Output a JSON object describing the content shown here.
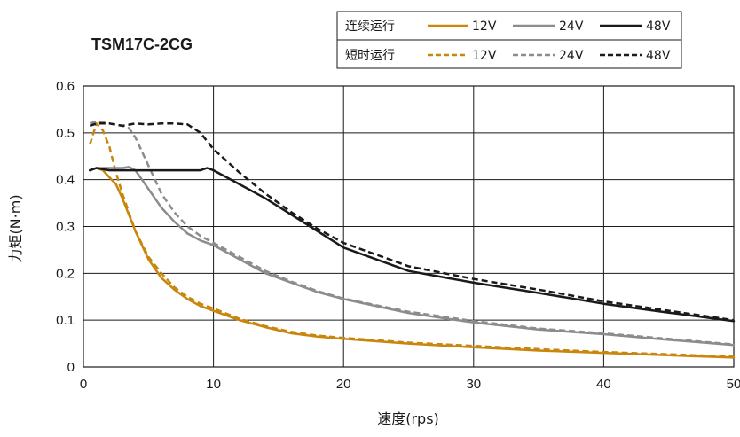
{
  "chart_data": {
    "type": "line",
    "title": "TSM17C-2CG",
    "xlabel": "速度(rps)",
    "ylabel": "力矩(N·m)",
    "xlim": [
      0,
      50
    ],
    "ylim": [
      0,
      0.6
    ],
    "xticks": [
      "0",
      "10",
      "20",
      "30",
      "40",
      "50"
    ],
    "yticks": [
      "0",
      "0.1",
      "0.2",
      "0.3",
      "0.4",
      "0.5",
      "0.6"
    ],
    "grid": true,
    "legend": {
      "placement": "top-right",
      "rows": [
        {
          "label": "连续运行",
          "dash": "solid",
          "entries": [
            "12V",
            "24V",
            "48V"
          ]
        },
        {
          "label": "短时运行",
          "dash": "dashed",
          "entries": [
            "12V",
            "24V",
            "48V"
          ]
        }
      ]
    },
    "colors": {
      "12V": "#c8860d",
      "24V": "#8c8c8c",
      "48V": "#1a1a1a"
    },
    "series": [
      {
        "name": "12V",
        "style": "solid",
        "points": [
          [
            0.5,
            0.42
          ],
          [
            1,
            0.425
          ],
          [
            1.5,
            0.42
          ],
          [
            2,
            0.405
          ],
          [
            2.5,
            0.39
          ],
          [
            3,
            0.36
          ],
          [
            4,
            0.29
          ],
          [
            5,
            0.23
          ],
          [
            6,
            0.19
          ],
          [
            7,
            0.165
          ],
          [
            8,
            0.145
          ],
          [
            9,
            0.13
          ],
          [
            10,
            0.12
          ],
          [
            12,
            0.1
          ],
          [
            14,
            0.085
          ],
          [
            16,
            0.072
          ],
          [
            18,
            0.065
          ],
          [
            20,
            0.06
          ],
          [
            25,
            0.05
          ],
          [
            30,
            0.042
          ],
          [
            35,
            0.035
          ],
          [
            40,
            0.03
          ],
          [
            45,
            0.025
          ],
          [
            50,
            0.02
          ]
        ]
      },
      {
        "name": "12V",
        "style": "dashed",
        "points": [
          [
            0.5,
            0.475
          ],
          [
            1,
            0.52
          ],
          [
            1.5,
            0.505
          ],
          [
            2,
            0.47
          ],
          [
            2.5,
            0.415
          ],
          [
            3,
            0.37
          ],
          [
            4,
            0.29
          ],
          [
            5,
            0.235
          ],
          [
            6,
            0.2
          ],
          [
            7,
            0.17
          ],
          [
            8,
            0.15
          ],
          [
            9,
            0.135
          ],
          [
            10,
            0.125
          ],
          [
            12,
            0.103
          ],
          [
            14,
            0.087
          ],
          [
            16,
            0.075
          ],
          [
            18,
            0.067
          ],
          [
            20,
            0.062
          ],
          [
            25,
            0.052
          ],
          [
            30,
            0.045
          ],
          [
            35,
            0.038
          ],
          [
            40,
            0.032
          ],
          [
            45,
            0.027
          ],
          [
            50,
            0.022
          ]
        ]
      },
      {
        "name": "24V",
        "style": "solid",
        "points": [
          [
            0.5,
            0.42
          ],
          [
            1,
            0.425
          ],
          [
            2,
            0.425
          ],
          [
            3,
            0.425
          ],
          [
            3.5,
            0.427
          ],
          [
            4,
            0.42
          ],
          [
            5,
            0.38
          ],
          [
            6,
            0.34
          ],
          [
            7,
            0.31
          ],
          [
            8,
            0.285
          ],
          [
            9,
            0.27
          ],
          [
            10,
            0.26
          ],
          [
            12,
            0.23
          ],
          [
            14,
            0.2
          ],
          [
            16,
            0.18
          ],
          [
            18,
            0.16
          ],
          [
            20,
            0.145
          ],
          [
            25,
            0.115
          ],
          [
            30,
            0.095
          ],
          [
            35,
            0.08
          ],
          [
            40,
            0.07
          ],
          [
            45,
            0.058
          ],
          [
            50,
            0.047
          ]
        ]
      },
      {
        "name": "24V",
        "style": "dashed",
        "points": [
          [
            0.5,
            0.52
          ],
          [
            1,
            0.525
          ],
          [
            2,
            0.52
          ],
          [
            3,
            0.515
          ],
          [
            3.5,
            0.51
          ],
          [
            4,
            0.49
          ],
          [
            5,
            0.43
          ],
          [
            6,
            0.37
          ],
          [
            7,
            0.33
          ],
          [
            8,
            0.3
          ],
          [
            9,
            0.28
          ],
          [
            10,
            0.265
          ],
          [
            12,
            0.235
          ],
          [
            14,
            0.205
          ],
          [
            16,
            0.182
          ],
          [
            18,
            0.162
          ],
          [
            20,
            0.146
          ],
          [
            25,
            0.118
          ],
          [
            30,
            0.098
          ],
          [
            35,
            0.082
          ],
          [
            40,
            0.072
          ],
          [
            45,
            0.06
          ],
          [
            50,
            0.048
          ]
        ]
      },
      {
        "name": "48V",
        "style": "solid",
        "points": [
          [
            0.5,
            0.42
          ],
          [
            1,
            0.425
          ],
          [
            2,
            0.42
          ],
          [
            3,
            0.42
          ],
          [
            4,
            0.42
          ],
          [
            5,
            0.42
          ],
          [
            6,
            0.42
          ],
          [
            7,
            0.42
          ],
          [
            8,
            0.42
          ],
          [
            9,
            0.42
          ],
          [
            9.5,
            0.425
          ],
          [
            10,
            0.42
          ],
          [
            11,
            0.405
          ],
          [
            12,
            0.39
          ],
          [
            14,
            0.36
          ],
          [
            16,
            0.325
          ],
          [
            18,
            0.29
          ],
          [
            20,
            0.255
          ],
          [
            25,
            0.205
          ],
          [
            30,
            0.18
          ],
          [
            35,
            0.158
          ],
          [
            40,
            0.135
          ],
          [
            45,
            0.116
          ],
          [
            50,
            0.098
          ]
        ]
      },
      {
        "name": "48V",
        "style": "dashed",
        "points": [
          [
            0.5,
            0.515
          ],
          [
            1,
            0.52
          ],
          [
            2,
            0.52
          ],
          [
            3,
            0.515
          ],
          [
            4,
            0.52
          ],
          [
            5,
            0.518
          ],
          [
            6,
            0.52
          ],
          [
            7,
            0.52
          ],
          [
            8,
            0.518
          ],
          [
            9,
            0.5
          ],
          [
            10,
            0.465
          ],
          [
            11,
            0.44
          ],
          [
            12,
            0.415
          ],
          [
            14,
            0.37
          ],
          [
            16,
            0.33
          ],
          [
            18,
            0.295
          ],
          [
            20,
            0.265
          ],
          [
            25,
            0.215
          ],
          [
            30,
            0.188
          ],
          [
            35,
            0.165
          ],
          [
            40,
            0.14
          ],
          [
            45,
            0.12
          ],
          [
            50,
            0.1
          ]
        ]
      }
    ]
  }
}
